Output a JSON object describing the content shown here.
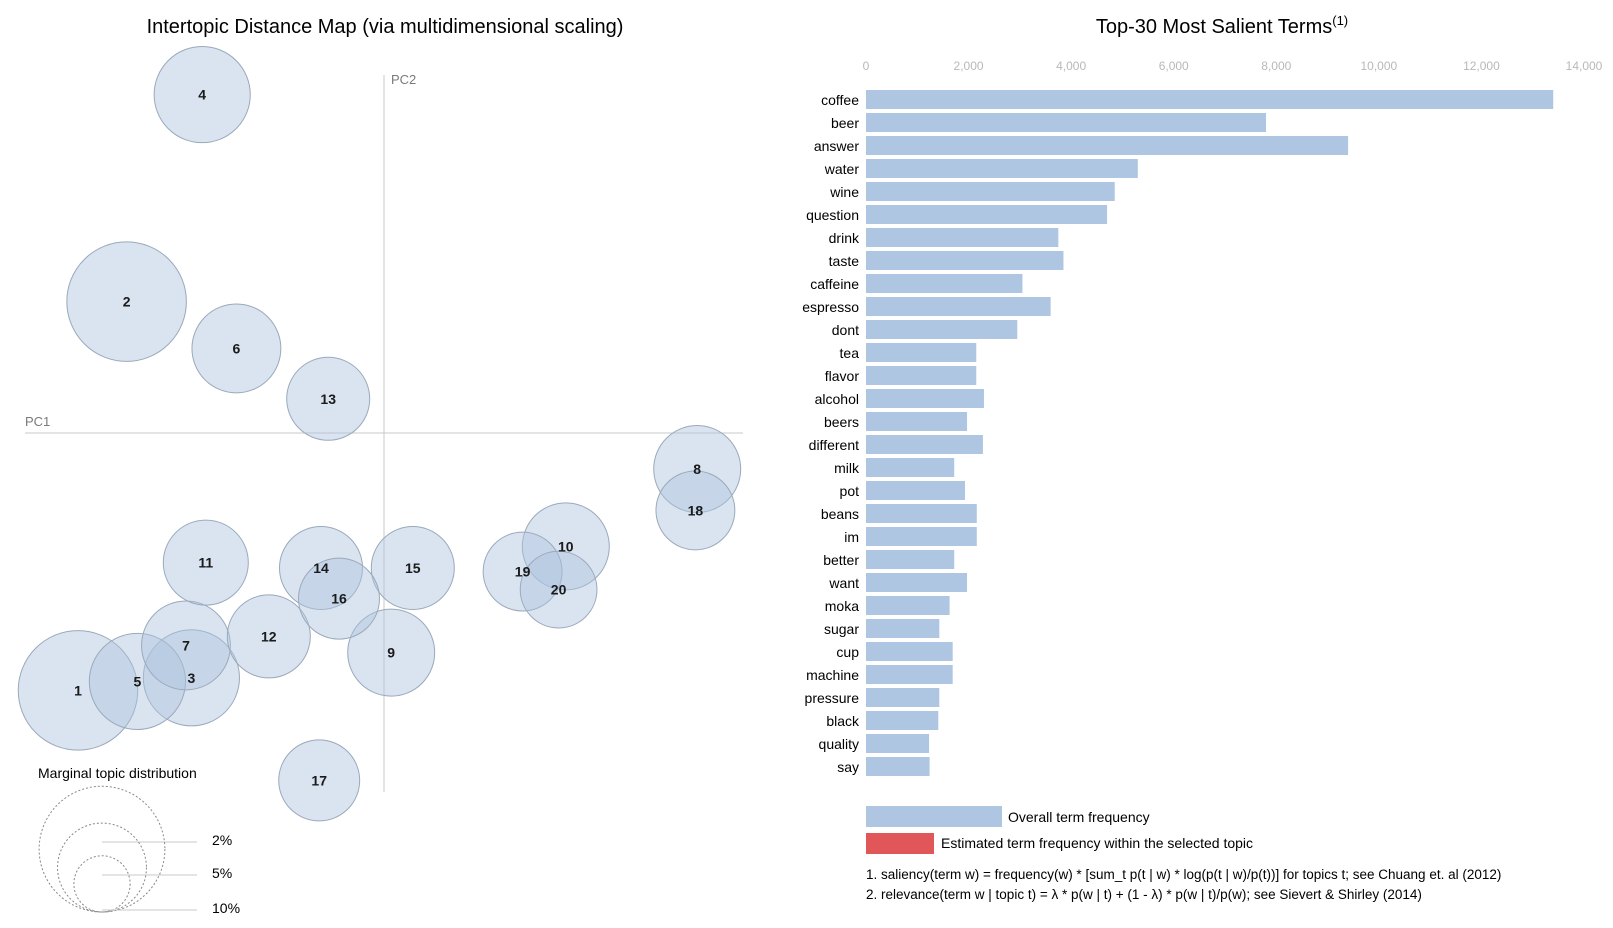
{
  "chart_data": [
    {
      "type": "scatter",
      "title": "Intertopic Distance Map (via multidimensional scaling)",
      "xlabel": "PC1",
      "ylabel": "PC2",
      "topics": [
        {
          "id": "1",
          "x": -0.17,
          "y": -0.143,
          "size": 8.5
        },
        {
          "id": "2",
          "x": -0.143,
          "y": 0.073,
          "size": 8.5
        },
        {
          "id": "3",
          "x": -0.107,
          "y": -0.136,
          "size": 5.5
        },
        {
          "id": "4",
          "x": -0.101,
          "y": 0.188,
          "size": 5.5
        },
        {
          "id": "5",
          "x": -0.137,
          "y": -0.138,
          "size": 5.5
        },
        {
          "id": "6",
          "x": -0.082,
          "y": 0.047,
          "size": 4.7
        },
        {
          "id": "7",
          "x": -0.11,
          "y": -0.118,
          "size": 4.7
        },
        {
          "id": "8",
          "x": 0.174,
          "y": -0.02,
          "size": 4.5
        },
        {
          "id": "9",
          "x": 0.004,
          "y": -0.122,
          "size": 4.5
        },
        {
          "id": "10",
          "x": 0.101,
          "y": -0.063,
          "size": 4.5
        },
        {
          "id": "11",
          "x": -0.099,
          "y": -0.072,
          "size": 4.3
        },
        {
          "id": "12",
          "x": -0.064,
          "y": -0.113,
          "size": 4.1
        },
        {
          "id": "13",
          "x": -0.031,
          "y": 0.019,
          "size": 4.1
        },
        {
          "id": "14",
          "x": -0.035,
          "y": -0.075,
          "size": 4.1
        },
        {
          "id": "15",
          "x": 0.016,
          "y": -0.075,
          "size": 4.1
        },
        {
          "id": "16",
          "x": -0.025,
          "y": -0.092,
          "size": 3.9
        },
        {
          "id": "17",
          "x": -0.036,
          "y": -0.193,
          "size": 3.9
        },
        {
          "id": "18",
          "x": 0.173,
          "y": -0.043,
          "size": 3.7
        },
        {
          "id": "19",
          "x": 0.077,
          "y": -0.077,
          "size": 3.7
        },
        {
          "id": "20",
          "x": 0.097,
          "y": -0.087,
          "size": 3.5
        }
      ],
      "marginal": {
        "title": "Marginal topic distribution",
        "labels": [
          "2%",
          "5%",
          "10%"
        ],
        "values": [
          2,
          5,
          10
        ]
      }
    },
    {
      "type": "bar",
      "orientation": "horizontal",
      "title": "Top-30 Most Salient Terms",
      "title_sup": "(1)",
      "xlim": [
        0,
        14000
      ],
      "ticks": [
        {
          "value": 0,
          "label": "0"
        },
        {
          "value": 2000,
          "label": "2,000"
        },
        {
          "value": 4000,
          "label": "4,000"
        },
        {
          "value": 6000,
          "label": "6,000"
        },
        {
          "value": 8000,
          "label": "8,000"
        },
        {
          "value": 10000,
          "label": "10,000"
        },
        {
          "value": 12000,
          "label": "12,000"
        },
        {
          "value": 14000,
          "label": "14,000"
        }
      ],
      "categories": [
        "coffee",
        "beer",
        "answer",
        "water",
        "wine",
        "question",
        "drink",
        "taste",
        "caffeine",
        "espresso",
        "dont",
        "tea",
        "flavor",
        "alcohol",
        "beers",
        "different",
        "milk",
        "pot",
        "beans",
        "im",
        "better",
        "want",
        "moka",
        "sugar",
        "cup",
        "machine",
        "pressure",
        "black",
        "quality",
        "say"
      ],
      "values": [
        13400,
        7800,
        9400,
        5300,
        4850,
        4700,
        3750,
        3850,
        3050,
        3600,
        2950,
        2150,
        2150,
        2300,
        1970,
        2280,
        1720,
        1930,
        2160,
        2160,
        1720,
        1970,
        1630,
        1430,
        1690,
        1690,
        1430,
        1410,
        1230,
        1240
      ],
      "legend": {
        "overall": {
          "label": "Overall term frequency",
          "color": "#aec6e1"
        },
        "selected": {
          "label": "Estimated term frequency within the selected topic",
          "color": "#e15759"
        }
      },
      "notes": [
        "1. saliency(term w) = frequency(w) * [sum_t p(t | w) * log(p(t | w)/p(t))] for topics t; see Chuang et. al (2012)",
        "2. relevance(term w | topic t) = λ * p(w | t) + (1 - λ) * p(w | t)/p(w); see Sievert & Shirley (2014)"
      ]
    }
  ]
}
